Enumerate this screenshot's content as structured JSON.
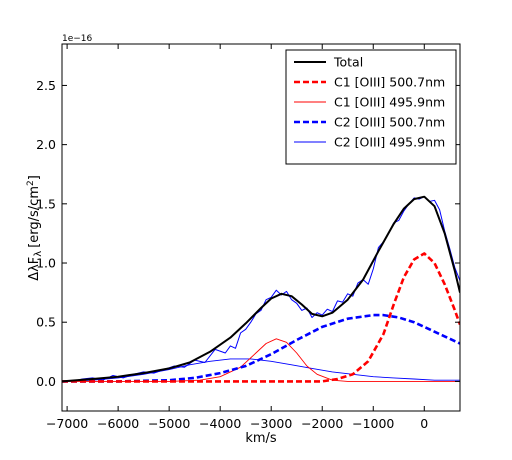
{
  "chart_data": {
    "type": "line",
    "title": "",
    "xlabel": "km/s",
    "ylabel": "ΔλF",
    "ylabel_subscript": "λ",
    "ylabel_unit_prefix": "[erg/s/cm",
    "ylabel_unit_power": "2",
    "ylabel_unit_suffix": "]",
    "y_scale_label": "1e−16",
    "xlim": [
      -7100,
      700
    ],
    "ylim": [
      -0.25,
      2.85
    ],
    "xticks": [
      -7000,
      -6000,
      -5000,
      -4000,
      -3000,
      -2000,
      -1000,
      0
    ],
    "xtick_labels": [
      "−7000",
      "−6000",
      "−5000",
      "−4000",
      "−3000",
      "−2000",
      "−1000",
      "0"
    ],
    "yticks": [
      0.0,
      0.5,
      1.0,
      1.5,
      2.0,
      2.5
    ],
    "ytick_labels": [
      "0.0",
      "0.5",
      "1.0",
      "1.5",
      "2.0",
      "2.5"
    ],
    "grid": false,
    "legend_position": "top-right",
    "series": [
      {
        "name": "Total",
        "color": "#000000",
        "style": "solid-thick",
        "x": [
          -7100,
          -6500,
          -6000,
          -5500,
          -5000,
          -4600,
          -4200,
          -3800,
          -3500,
          -3200,
          -3000,
          -2800,
          -2600,
          -2400,
          -2200,
          -2000,
          -1800,
          -1500,
          -1200,
          -900,
          -600,
          -400,
          -200,
          0,
          200,
          400,
          600,
          700
        ],
        "y": [
          0.0,
          0.02,
          0.04,
          0.07,
          0.11,
          0.16,
          0.25,
          0.37,
          0.49,
          0.62,
          0.7,
          0.74,
          0.72,
          0.65,
          0.57,
          0.55,
          0.58,
          0.69,
          0.86,
          1.1,
          1.33,
          1.46,
          1.54,
          1.56,
          1.48,
          1.25,
          0.93,
          0.75
        ]
      },
      {
        "name": "C1 [OIII] 500.7nm",
        "color": "#ff0000",
        "style": "dashed-thick",
        "x": [
          -7100,
          -3000,
          -2000,
          -1700,
          -1400,
          -1100,
          -800,
          -600,
          -400,
          -200,
          0,
          200,
          400,
          600,
          700
        ],
        "y": [
          0.0,
          0.0,
          0.0,
          0.02,
          0.06,
          0.17,
          0.4,
          0.65,
          0.88,
          1.03,
          1.08,
          1.0,
          0.82,
          0.6,
          0.48
        ]
      },
      {
        "name": "C1 [OIII] 495.9nm",
        "color": "#ff0000",
        "style": "solid-thin",
        "x": [
          -7100,
          -5000,
          -4400,
          -4000,
          -3600,
          -3300,
          -3100,
          -2900,
          -2700,
          -2500,
          -2300,
          -2100,
          -1800,
          -1500,
          -1200,
          700
        ],
        "y": [
          0.0,
          0.0,
          0.01,
          0.04,
          0.12,
          0.24,
          0.32,
          0.36,
          0.33,
          0.24,
          0.13,
          0.06,
          0.01,
          0.0,
          0.0,
          0.0
        ]
      },
      {
        "name": "C2 [OIII] 500.7nm",
        "color": "#0000ff",
        "style": "dashed-thick",
        "x": [
          -7100,
          -6000,
          -5000,
          -4500,
          -4000,
          -3500,
          -3000,
          -2500,
          -2000,
          -1500,
          -1000,
          -800,
          -500,
          -200,
          0,
          200,
          400,
          600,
          700
        ],
        "y": [
          0.0,
          0.0,
          0.01,
          0.03,
          0.07,
          0.13,
          0.23,
          0.35,
          0.46,
          0.53,
          0.56,
          0.56,
          0.54,
          0.5,
          0.46,
          0.42,
          0.38,
          0.34,
          0.32
        ]
      },
      {
        "name": "C2 [OIII] 495.9nm",
        "color": "#0000ff",
        "style": "solid-thin",
        "x": [
          -7100,
          -6500,
          -6000,
          -5500,
          -5000,
          -4600,
          -4200,
          -3800,
          -3400,
          -3000,
          -2600,
          -2200,
          -1800,
          -1400,
          -1000,
          -600,
          -200,
          200,
          700
        ],
        "y": [
          0.0,
          0.01,
          0.03,
          0.06,
          0.1,
          0.14,
          0.17,
          0.19,
          0.19,
          0.17,
          0.14,
          0.11,
          0.08,
          0.06,
          0.04,
          0.03,
          0.02,
          0.01,
          0.01
        ]
      },
      {
        "name": "",
        "color": "#0000ff",
        "style": "data-noisy",
        "x": [
          -7100,
          -6900,
          -6700,
          -6500,
          -6300,
          -6100,
          -5900,
          -5700,
          -5500,
          -5300,
          -5100,
          -4900,
          -4700,
          -4500,
          -4300,
          -4100,
          -3900,
          -3800,
          -3700,
          -3600,
          -3500,
          -3400,
          -3300,
          -3200,
          -3100,
          -3000,
          -2900,
          -2800,
          -2700,
          -2600,
          -2500,
          -2400,
          -2300,
          -2200,
          -2100,
          -2000,
          -1900,
          -1800,
          -1700,
          -1600,
          -1500,
          -1400,
          -1300,
          -1200,
          -1100,
          -1000,
          -900,
          -800,
          -700,
          -600,
          -500,
          -400,
          -300,
          -200,
          -100,
          0,
          100,
          200,
          300,
          400,
          500,
          600,
          700
        ],
        "y": [
          0.0,
          0.0,
          0.02,
          0.03,
          0.01,
          0.05,
          0.03,
          0.06,
          0.08,
          0.07,
          0.1,
          0.13,
          0.12,
          0.18,
          0.16,
          0.27,
          0.24,
          0.3,
          0.28,
          0.41,
          0.44,
          0.5,
          0.57,
          0.6,
          0.69,
          0.71,
          0.77,
          0.73,
          0.76,
          0.69,
          0.66,
          0.6,
          0.62,
          0.54,
          0.58,
          0.56,
          0.61,
          0.59,
          0.68,
          0.67,
          0.74,
          0.72,
          0.83,
          0.86,
          0.82,
          0.95,
          1.13,
          1.18,
          1.25,
          1.34,
          1.36,
          1.44,
          1.5,
          1.55,
          1.54,
          1.56,
          1.52,
          1.53,
          1.45,
          1.27,
          1.12,
          0.96,
          0.85
        ]
      }
    ],
    "legend": [
      {
        "name": "Total",
        "color": "#000000",
        "style": "solid-thick"
      },
      {
        "name": "C1 [OIII] 500.7nm",
        "color": "#ff0000",
        "style": "dashed-thick"
      },
      {
        "name": "C1 [OIII] 495.9nm",
        "color": "#ff0000",
        "style": "solid-thin"
      },
      {
        "name": "C2 [OIII] 500.7nm",
        "color": "#0000ff",
        "style": "dashed-thick"
      },
      {
        "name": "C2 [OIII] 495.9nm",
        "color": "#0000ff",
        "style": "solid-thin"
      }
    ]
  }
}
